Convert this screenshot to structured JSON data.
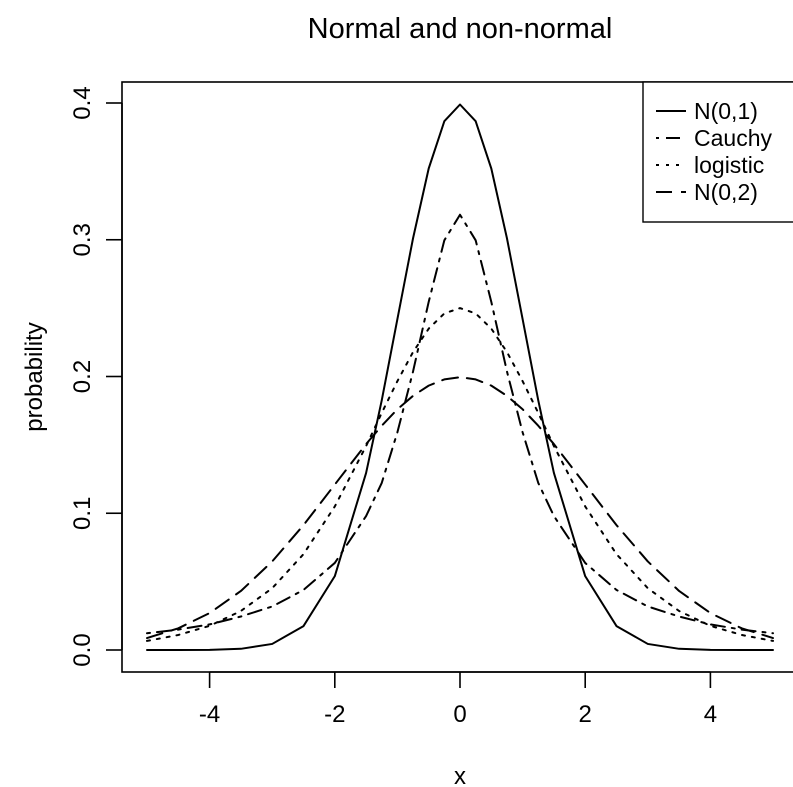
{
  "chart_data": {
    "type": "line",
    "title": "Normal and non-normal",
    "xlabel": "x",
    "ylabel": "probability",
    "xlim": [
      -5,
      5
    ],
    "ylim": [
      0,
      0.4
    ],
    "xticks": [
      -4,
      -2,
      0,
      2,
      4
    ],
    "yticks": [
      0.0,
      0.1,
      0.2,
      0.3,
      0.4
    ],
    "xtick_labels": [
      "-4",
      "-2",
      "0",
      "2",
      "4"
    ],
    "ytick_labels": [
      "0.0",
      "0.1",
      "0.2",
      "0.3",
      "0.4"
    ],
    "grid": false,
    "legend_position": "top-right",
    "x": [
      -5,
      -4.5,
      -4,
      -3.5,
      -3,
      -2.5,
      -2,
      -1.5,
      -1.25,
      -1,
      -0.75,
      -0.5,
      -0.25,
      0,
      0.25,
      0.5,
      0.75,
      1,
      1.25,
      1.5,
      2,
      2.5,
      3,
      3.5,
      4,
      4.5,
      5
    ],
    "series": [
      {
        "name": "N(0,1)",
        "dash": "solid",
        "values": [
          1.5e-06,
          1.6e-05,
          0.000134,
          0.000873,
          0.00443,
          0.0175,
          0.054,
          0.1295,
          0.1826,
          0.242,
          0.3011,
          0.3521,
          0.3867,
          0.3989,
          0.3867,
          0.3521,
          0.3011,
          0.242,
          0.1826,
          0.1295,
          0.054,
          0.0175,
          0.00443,
          0.000873,
          0.000134,
          1.6e-05,
          1.5e-06
        ]
      },
      {
        "name": "Cauchy",
        "dash": "dotdash",
        "values": [
          0.01224,
          0.01492,
          0.01872,
          0.02448,
          0.03183,
          0.0439,
          0.06366,
          0.09794,
          0.1222,
          0.1592,
          0.2037,
          0.2546,
          0.2996,
          0.3183,
          0.2996,
          0.2546,
          0.2037,
          0.1592,
          0.1222,
          0.09794,
          0.06366,
          0.0439,
          0.03183,
          0.02448,
          0.01872,
          0.01492,
          0.01224
        ]
      },
      {
        "name": "logistic",
        "dash": "dotted",
        "values": [
          0.00665,
          0.01099,
          0.01766,
          0.02852,
          0.04518,
          0.0701,
          0.10499,
          0.14914,
          0.17338,
          0.19661,
          0.21789,
          0.235,
          0.24613,
          0.25,
          0.24613,
          0.235,
          0.21789,
          0.19661,
          0.17338,
          0.14914,
          0.10499,
          0.0701,
          0.04518,
          0.02852,
          0.01766,
          0.01099,
          0.00665
        ]
      },
      {
        "name": "N(0,2)",
        "dash": "dashed",
        "values": [
          0.00876,
          0.01586,
          0.027,
          0.04317,
          0.06476,
          0.09132,
          0.12099,
          0.15058,
          0.16401,
          0.17603,
          0.18586,
          0.19333,
          0.19789,
          0.19947,
          0.19789,
          0.19333,
          0.18586,
          0.17603,
          0.16401,
          0.15058,
          0.12099,
          0.09132,
          0.06476,
          0.04317,
          0.027,
          0.01586,
          0.00876
        ]
      }
    ]
  }
}
